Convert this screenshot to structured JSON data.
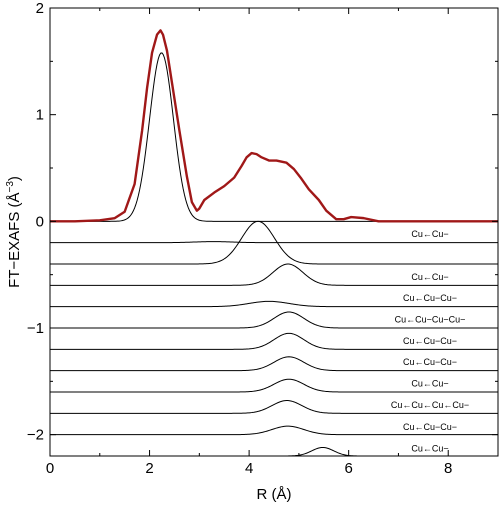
{
  "chart_data": {
    "type": "line",
    "xlabel": "R (Å)",
    "ylabel": "FT−EXAFS (Å",
    "ylabel_exp": "−3",
    "ylabel_close": ")",
    "xlim": [
      0,
      9
    ],
    "ylim": [
      -2.2,
      2
    ],
    "xticks": [
      0,
      2,
      4,
      6,
      8
    ],
    "yticks": [
      2,
      1,
      0,
      -1,
      -2
    ],
    "ytick_labels": [
      "2",
      "1",
      "0",
      "−1",
      "−2"
    ],
    "colors": {
      "total": "#a01818",
      "paths": "#000000",
      "frame": "#000000"
    },
    "total": {
      "x": [
        0,
        0.5,
        1.0,
        1.3,
        1.5,
        1.7,
        1.85,
        1.95,
        2.05,
        2.15,
        2.22,
        2.27,
        2.35,
        2.45,
        2.6,
        2.75,
        2.85,
        2.95,
        3.0,
        3.1,
        3.3,
        3.5,
        3.7,
        3.85,
        3.95,
        4.05,
        4.15,
        4.25,
        4.4,
        4.55,
        4.75,
        4.9,
        5.05,
        5.2,
        5.4,
        5.55,
        5.75,
        5.9,
        6.05,
        6.3,
        6.6,
        6.9,
        7.5,
        8.0,
        9.0
      ],
      "y": [
        0,
        0,
        0.01,
        0.03,
        0.09,
        0.35,
        0.85,
        1.25,
        1.58,
        1.75,
        1.79,
        1.75,
        1.6,
        1.3,
        0.85,
        0.42,
        0.18,
        0.1,
        0.12,
        0.2,
        0.27,
        0.33,
        0.41,
        0.52,
        0.6,
        0.64,
        0.63,
        0.6,
        0.57,
        0.57,
        0.55,
        0.49,
        0.4,
        0.3,
        0.2,
        0.1,
        0.02,
        0.02,
        0.04,
        0.03,
        0,
        0,
        0,
        0,
        0
      ]
    },
    "paths": [
      {
        "label": "",
        "offset": 0,
        "center": 2.24,
        "width": 0.24,
        "amp": 1.58,
        "label_y": null
      },
      {
        "label": "Cu←Cu−",
        "offset": -0.2,
        "center": 3.28,
        "width": 0.38,
        "amp": 0.01,
        "label_y": -0.12
      },
      {
        "label": "",
        "offset": -0.4,
        "center": 4.18,
        "width": 0.33,
        "amp": 0.4,
        "label_y": null
      },
      {
        "label": "Cu←Cu−",
        "offset": -0.6,
        "center": 4.78,
        "width": 0.3,
        "amp": 0.2,
        "label_y": -0.52
      },
      {
        "label": "Cu←Cu−Cu−",
        "offset": -0.8,
        "center": 4.4,
        "width": 0.4,
        "amp": 0.05,
        "label_y": -0.72
      },
      {
        "label": "Cu←Cu−Cu−Cu−",
        "offset": -1.0,
        "center": 4.8,
        "width": 0.3,
        "amp": 0.15,
        "label_y": -0.92
      },
      {
        "label": "Cu←Cu−Cu−",
        "offset": -1.2,
        "center": 4.8,
        "width": 0.3,
        "amp": 0.15,
        "label_y": -1.12
      },
      {
        "label": "Cu←Cu−Cu−",
        "offset": -1.4,
        "center": 4.8,
        "width": 0.3,
        "amp": 0.13,
        "label_y": -1.32
      },
      {
        "label": "Cu←Cu−",
        "offset": -1.6,
        "center": 4.8,
        "width": 0.3,
        "amp": 0.12,
        "label_y": -1.52
      },
      {
        "label": "Cu←Cu←Cu←Cu−",
        "offset": -1.8,
        "center": 4.76,
        "width": 0.3,
        "amp": 0.12,
        "label_y": -1.72
      },
      {
        "label": "Cu←Cu−Cu−",
        "offset": -2.0,
        "center": 4.78,
        "width": 0.32,
        "amp": 0.08,
        "label_y": -1.93
      },
      {
        "label": "Cu←Cu−",
        "offset": -2.2,
        "center": 5.48,
        "width": 0.22,
        "amp": 0.08,
        "label_y": -2.13
      }
    ]
  }
}
